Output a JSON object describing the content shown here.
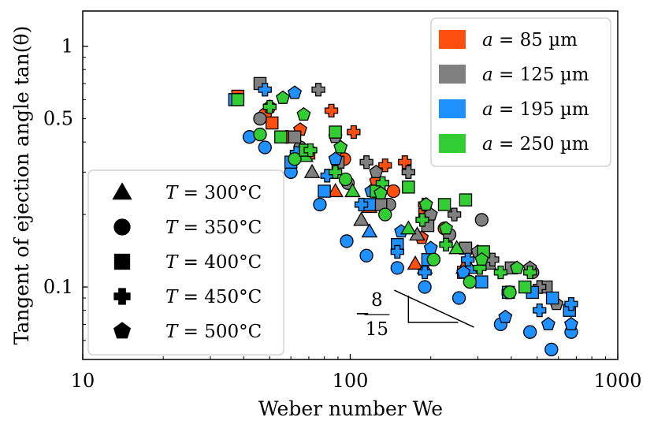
{
  "chart_data": {
    "type": "scatter",
    "title": "",
    "xlabel": "Weber number We",
    "ylabel": "Tangent of ejection angle tan(θ)",
    "xscale": "log",
    "yscale": "log",
    "xlim": [
      10,
      1000
    ],
    "ylim": [
      0.05,
      1.4
    ],
    "xtick_labels": [
      "10",
      "100",
      "1000"
    ],
    "xtick_values": [
      10,
      100,
      1000
    ],
    "ytick_labels": [
      "0.1",
      "0.5",
      "1"
    ],
    "ytick_values": [
      0.1,
      0.5,
      1
    ],
    "color_legend": {
      "placement": "top-right",
      "entries": [
        {
          "label": "a = 85 µm",
          "var": "a",
          "value": "85 µm",
          "color": "#ff4f10"
        },
        {
          "label": "a = 125 µm",
          "var": "a",
          "value": "125 µm",
          "color": "#808080"
        },
        {
          "label": "a = 195 µm",
          "var": "a",
          "value": "195 µm",
          "color": "#1e90ff"
        },
        {
          "label": "a = 250 µm",
          "var": "a",
          "value": "250 µm",
          "color": "#32cd32"
        }
      ]
    },
    "marker_legend": {
      "placement": "bottom-left",
      "entries": [
        {
          "label": "T = 300°C",
          "var": "T",
          "value": "300°C",
          "marker": "triangle"
        },
        {
          "label": "T = 350°C",
          "var": "T",
          "value": "350°C",
          "marker": "circle"
        },
        {
          "label": "T = 400°C",
          "var": "T",
          "value": "400°C",
          "marker": "square"
        },
        {
          "label": "T = 450°C",
          "var": "T",
          "value": "450°C",
          "marker": "plus"
        },
        {
          "label": "T = 500°C",
          "var": "T",
          "value": "500°C",
          "marker": "pentagon"
        }
      ]
    },
    "slope_annotation": {
      "prefix": "−",
      "numerator": "8",
      "denominator": "15",
      "slope": -0.5333,
      "triangle_x": [
        165,
        290
      ],
      "triangle_y_at_x_start": 0.092
    },
    "series": [
      {
        "name": "a=85, T=300",
        "color": "#ff4f10",
        "marker": "triangle",
        "x": [
          88,
          118,
          175,
          265
        ],
        "y": [
          0.25,
          0.215,
          0.125,
          0.12
        ]
      },
      {
        "name": "a=85, T=350",
        "color": "#ff4f10",
        "marker": "circle",
        "x": [
          48,
          58,
          95,
          145,
          225
        ],
        "y": [
          0.52,
          0.42,
          0.34,
          0.25,
          0.175
        ]
      },
      {
        "name": "a=85, T=400",
        "color": "#ff4f10",
        "marker": "square",
        "x": [
          38,
          51,
          70,
          128,
          190,
          265
        ],
        "y": [
          0.62,
          0.48,
          0.36,
          0.25,
          0.2,
          0.115
        ]
      },
      {
        "name": "a=85, T=450",
        "color": "#ff4f10",
        "marker": "plus",
        "x": [
          85,
          103,
          135,
          160,
          190
        ],
        "y": [
          0.54,
          0.44,
          0.32,
          0.33,
          0.22
        ]
      },
      {
        "name": "a=85, T=500",
        "color": "#ff4f10",
        "marker": "pentagon",
        "x": [
          50,
          65,
          125,
          185
        ],
        "y": [
          0.56,
          0.45,
          0.275,
          0.16
        ]
      },
      {
        "name": "a=125, T=300",
        "color": "#808080",
        "marker": "triangle",
        "x": [
          72,
          110,
          178,
          330
        ],
        "y": [
          0.3,
          0.19,
          0.165,
          0.125
        ]
      },
      {
        "name": "a=125, T=350",
        "color": "#808080",
        "marker": "circle",
        "x": [
          46,
          65,
          98,
          140,
          235,
          310,
          480
        ],
        "y": [
          0.5,
          0.38,
          0.27,
          0.22,
          0.165,
          0.19,
          0.115
        ]
      },
      {
        "name": "a=125, T=400",
        "color": "#808080",
        "marker": "square",
        "x": [
          46,
          62,
          90,
          130,
          195,
          270,
          400,
          540
        ],
        "y": [
          0.7,
          0.42,
          0.33,
          0.22,
          0.18,
          0.145,
          0.12,
          0.1
        ]
      },
      {
        "name": "a=125, T=450",
        "color": "#808080",
        "marker": "plus",
        "x": [
          76,
          115,
          165,
          245,
          340,
          510
        ],
        "y": [
          0.66,
          0.33,
          0.3,
          0.2,
          0.13,
          0.1
        ]
      },
      {
        "name": "a=125, T=500",
        "color": "#808080",
        "marker": "pentagon",
        "x": [
          88,
          125,
          200,
          300,
          470,
          590
        ],
        "y": [
          0.42,
          0.3,
          0.2,
          0.14,
          0.12,
          0.085
        ]
      },
      {
        "name": "a=195, T=300",
        "color": "#1e90ff",
        "marker": "triangle",
        "x": [
          118,
          190,
          280
        ],
        "y": [
          0.17,
          0.12,
          0.12
        ]
      },
      {
        "name": "a=195, T=350",
        "color": "#1e90ff",
        "marker": "circle",
        "x": [
          42,
          48,
          60,
          77,
          97,
          115,
          150,
          190,
          255,
          365,
          470,
          565,
          670
        ],
        "y": [
          0.42,
          0.38,
          0.3,
          0.22,
          0.155,
          0.135,
          0.12,
          0.1,
          0.09,
          0.07,
          0.065,
          0.055,
          0.065
        ]
      },
      {
        "name": "a=195, T=400",
        "color": "#1e90ff",
        "marker": "square",
        "x": [
          37,
          60,
          80,
          118,
          150,
          195,
          310,
          390,
          480,
          570,
          660
        ],
        "y": [
          0.6,
          0.33,
          0.25,
          0.22,
          0.15,
          0.13,
          0.105,
          0.095,
          0.095,
          0.09,
          0.08
        ]
      },
      {
        "name": "a=195, T=450",
        "color": "#1e90ff",
        "marker": "plus",
        "x": [
          48,
          63,
          82,
          110,
          150,
          190,
          275,
          390,
          510,
          670
        ],
        "y": [
          0.66,
          0.36,
          0.29,
          0.22,
          0.14,
          0.115,
          0.13,
          0.095,
          0.08,
          0.085
        ]
      },
      {
        "name": "a=195, T=500",
        "color": "#1e90ff",
        "marker": "pentagon",
        "x": [
          62,
          88,
          120,
          155,
          200,
          265,
          380,
          550,
          670
        ],
        "y": [
          0.64,
          0.34,
          0.25,
          0.17,
          0.145,
          0.115,
          0.075,
          0.07,
          0.07
        ]
      },
      {
        "name": "a=250, T=300",
        "color": "#32cd32",
        "marker": "triangle",
        "x": [
          68,
          102,
          165,
          250
        ],
        "y": [
          0.35,
          0.25,
          0.175,
          0.145
        ]
      },
      {
        "name": "a=250, T=350",
        "color": "#32cd32",
        "marker": "circle",
        "x": [
          46,
          62,
          96,
          135,
          205,
          280,
          395
        ],
        "y": [
          0.43,
          0.34,
          0.28,
          0.2,
          0.13,
          0.105,
          0.095
        ]
      },
      {
        "name": "a=250, T=400",
        "color": "#32cd32",
        "marker": "square",
        "x": [
          38,
          55,
          68,
          88,
          125,
          165,
          225,
          270,
          315,
          450
        ],
        "y": [
          0.6,
          0.42,
          0.37,
          0.44,
          0.25,
          0.26,
          0.22,
          0.23,
          0.14,
          0.1
        ]
      },
      {
        "name": "a=250, T=450",
        "color": "#32cd32",
        "marker": "plus",
        "x": [
          50,
          71,
          88,
          132,
          186,
          228,
          305,
          365,
          470
        ],
        "y": [
          0.56,
          0.37,
          0.3,
          0.27,
          0.19,
          0.15,
          0.12,
          0.115,
          0.115
        ]
      },
      {
        "name": "a=250, T=500",
        "color": "#32cd32",
        "marker": "pentagon",
        "x": [
          56,
          67,
          92,
          130,
          192,
          228,
          310,
          420
        ],
        "y": [
          0.61,
          0.52,
          0.38,
          0.245,
          0.22,
          0.175,
          0.13,
          0.12
        ]
      }
    ]
  }
}
